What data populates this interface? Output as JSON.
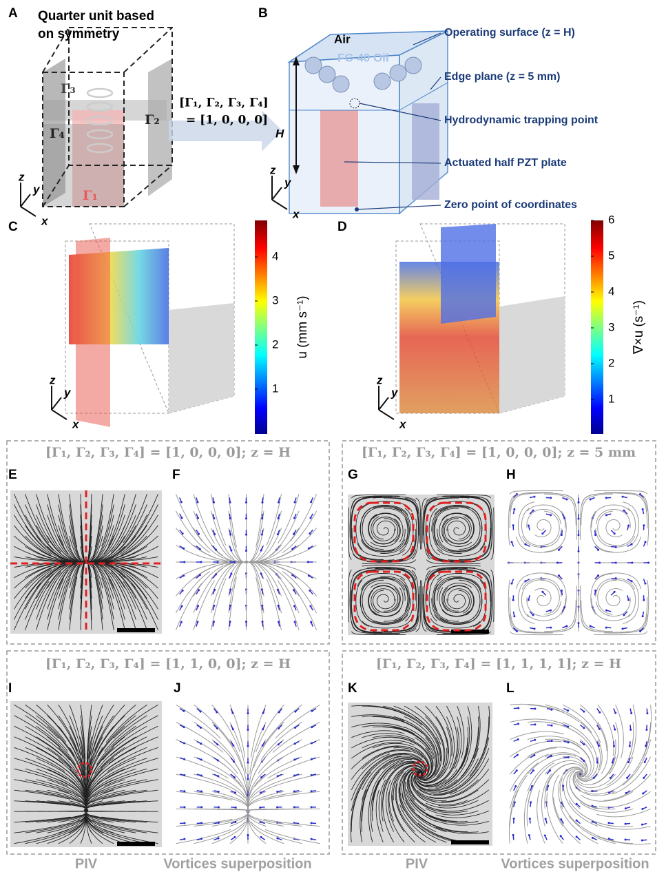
{
  "panels": {
    "A": {
      "label": "A",
      "title_lines": [
        "Quarter unit based",
        "on symmetry"
      ],
      "gammas": [
        "Γ₁",
        "Γ₂",
        "Γ₃",
        "Γ₄"
      ],
      "equation_lines": [
        "[Γ₁, Γ₂, Γ₃, Γ₄]",
        "= [1, 0, 0, 0]"
      ]
    },
    "B": {
      "label": "B",
      "air": "Air",
      "oil": "FC-40 Oil",
      "height": "H",
      "callouts": [
        "Operating surface (z = H)",
        "Edge plane (z = 5 mm)",
        "Hydrodynamic trapping point",
        "Actuated half PZT plate",
        "Zero point of coordinates"
      ]
    },
    "C": {
      "label": "C",
      "colorbar_ticks": [
        1,
        2,
        3,
        4
      ],
      "colorbar_label": "u (mm s⁻¹)"
    },
    "D": {
      "label": "D",
      "colorbar_ticks": [
        1,
        2,
        3,
        4,
        5,
        6
      ],
      "colorbar_label": "∇×u (s⁻¹)"
    },
    "E": {
      "label": "E"
    },
    "F": {
      "label": "F"
    },
    "G": {
      "label": "G"
    },
    "H": {
      "label": "H"
    },
    "I": {
      "label": "I"
    },
    "J": {
      "label": "J"
    },
    "K": {
      "label": "K"
    },
    "L": {
      "label": "L"
    }
  },
  "axes": {
    "x": "x",
    "y": "y",
    "z": "z"
  },
  "conditions": [
    "[Γ₁, Γ₂, Γ₃, Γ₄] = [1, 0, 0, 0]; z = H",
    "[Γ₁, Γ₂, Γ₃, Γ₄] = [1, 0, 0, 0]; z = 5 mm",
    "[Γ₁, Γ₂, Γ₃, Γ₄] = [1, 1, 0, 0]; z = H",
    "[Γ₁, Γ₂, Γ₃, Γ₄] = [1, 1, 1, 1]; z = H"
  ],
  "footer": {
    "piv": "PIV",
    "vortices": "Vortices superposition"
  }
}
